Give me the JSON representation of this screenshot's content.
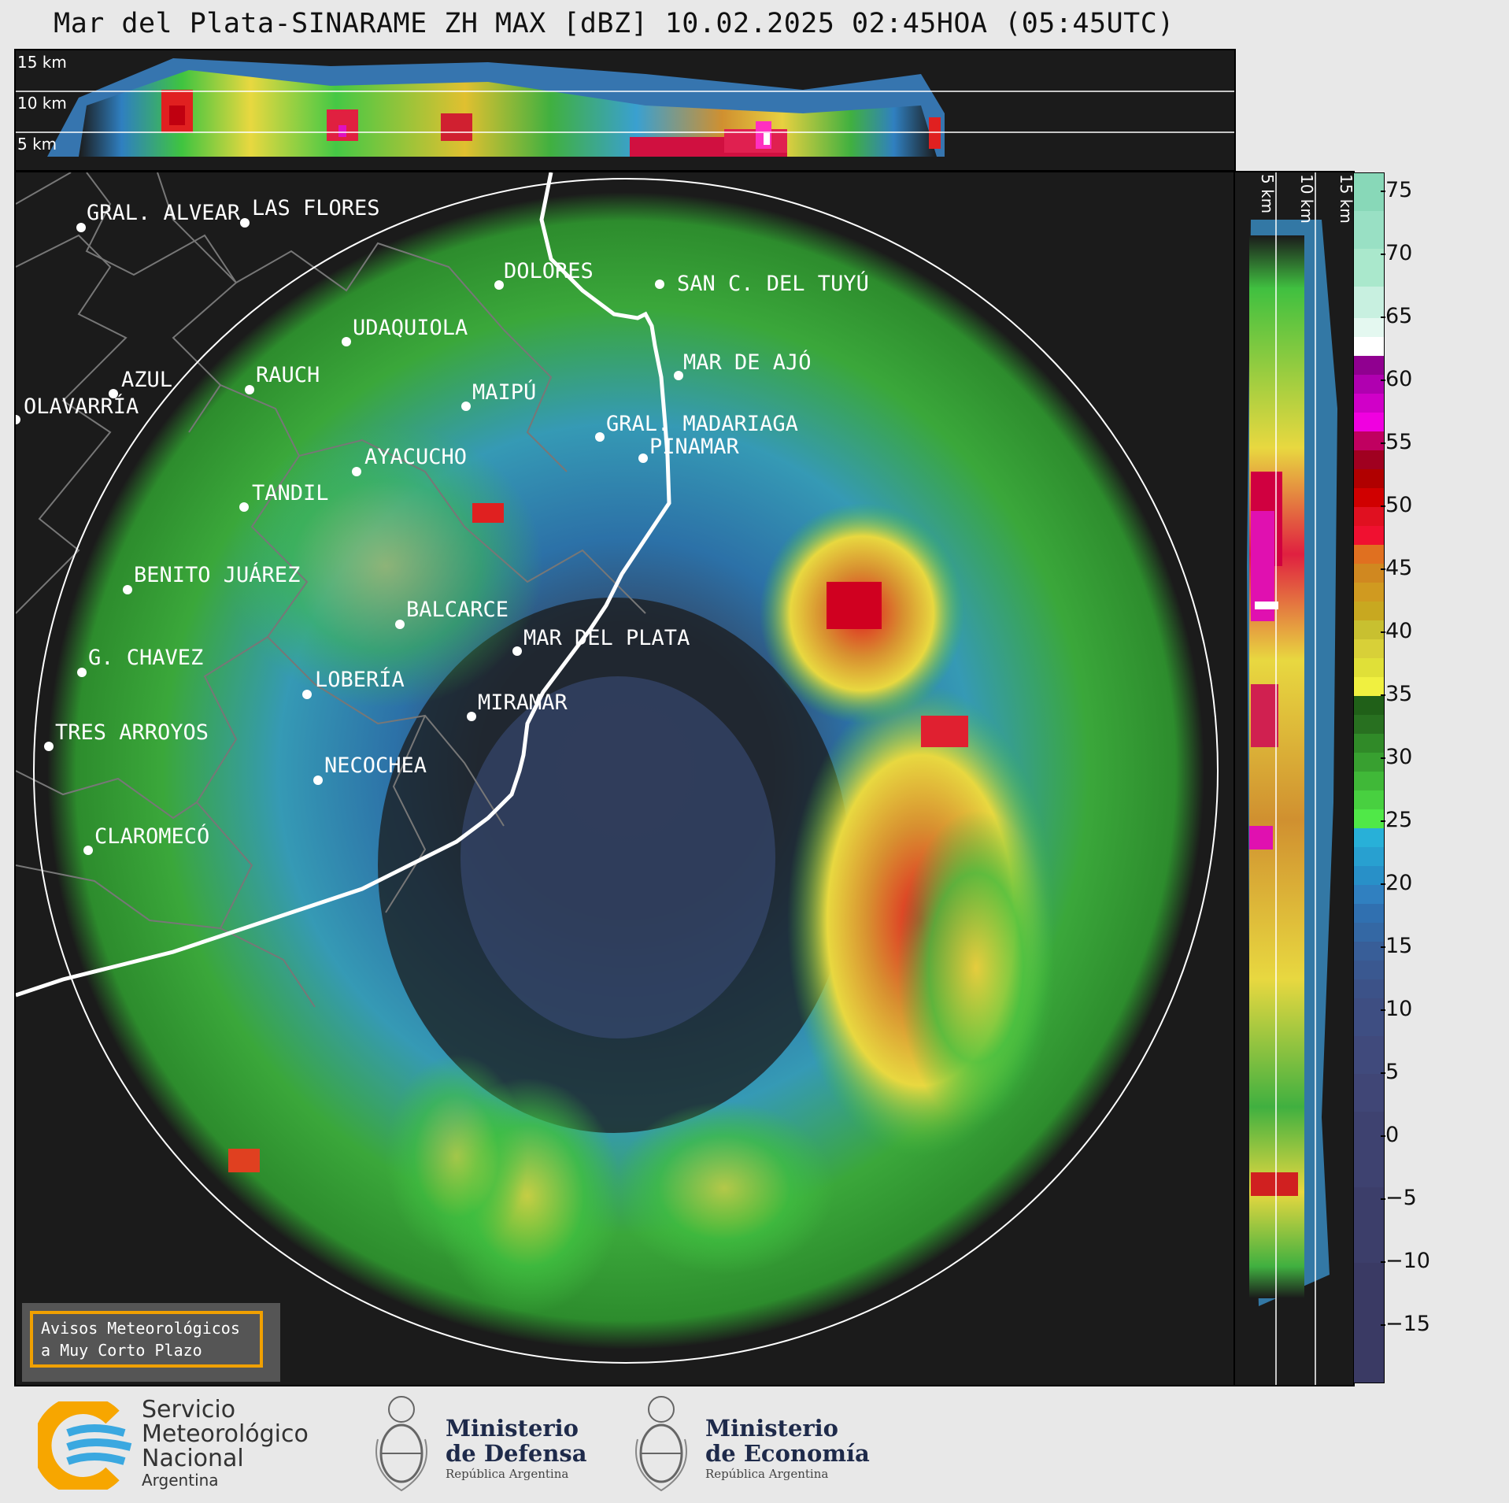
{
  "title": "Mar del Plata-SINARAME ZH MAX [dBZ] 10.02.2025 02:45HOA (05:45UTC)",
  "top_panel": {
    "height_labels": [
      "15 km",
      "10 km",
      "5 km"
    ]
  },
  "side_panel": {
    "height_labels": [
      "5 km",
      "10 km",
      "15 km"
    ]
  },
  "colorbar": {
    "unit": "dBZ",
    "ticks": [
      "75",
      "70",
      "65",
      "60",
      "55",
      "50",
      "45",
      "40",
      "35",
      "30",
      "25",
      "20",
      "15",
      "10",
      "5",
      "0",
      "−5",
      "−10",
      "−15"
    ],
    "range": [
      -19.5,
      76.5
    ]
  },
  "cities": [
    {
      "name": "GRAL. ALVEAR"
    },
    {
      "name": "LAS FLORES"
    },
    {
      "name": "DOLORES"
    },
    {
      "name": "SAN C. DEL TUYÚ"
    },
    {
      "name": "UDAQUIOLA"
    },
    {
      "name": "AZUL"
    },
    {
      "name": "OLAVARRÍA"
    },
    {
      "name": "RAUCH"
    },
    {
      "name": "MAR DE AJÓ"
    },
    {
      "name": "MAIPÚ"
    },
    {
      "name": "GRAL. MADARIAGA"
    },
    {
      "name": "PINAMAR"
    },
    {
      "name": "AYACUCHO"
    },
    {
      "name": "TANDIL"
    },
    {
      "name": "BENITO JUÁREZ"
    },
    {
      "name": "BALCARCE"
    },
    {
      "name": "MAR DEL PLATA"
    },
    {
      "name": "G. CHAVEZ"
    },
    {
      "name": "LOBERÍA"
    },
    {
      "name": "MIRAMAR"
    },
    {
      "name": "TRES ARROYOS"
    },
    {
      "name": "NECOCHEA"
    },
    {
      "name": "CLAROMECÓ"
    }
  ],
  "warning_box": {
    "line1": "Avisos Meteorológicos",
    "line2": "a Muy Corto Plazo"
  },
  "footer": {
    "smn": {
      "line1": "Servicio",
      "line2": "Meteorológico",
      "line3": "Nacional",
      "line4": "Argentina"
    },
    "defensa": {
      "line1": "Ministerio",
      "line2": "de Defensa",
      "line3": "República Argentina"
    },
    "economia": {
      "line1": "Ministerio",
      "line2": "de Economía",
      "line3": "República Argentina"
    }
  },
  "colors": {
    "background": "#1b1b1b",
    "range_ring": "#ffffff",
    "coastline": "#ffffff",
    "warning_border": "#f0a000",
    "smn_orange": "#f7a600",
    "smn_blue": "#3aa8e0"
  }
}
